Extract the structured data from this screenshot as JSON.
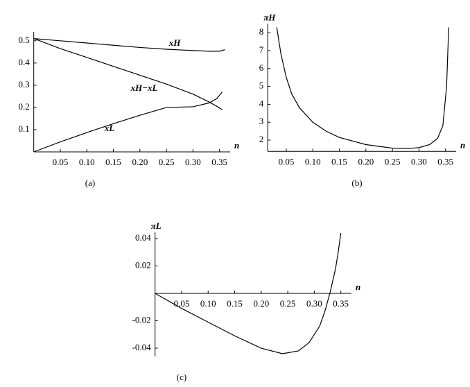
{
  "chart_data": [
    {
      "type": "line",
      "x_label": "n",
      "caption": "(a)",
      "xlim": [
        0,
        0.37
      ],
      "ylim": [
        0,
        0.54
      ],
      "xticks": [
        0.05,
        {
          "value": 0.1,
          "label": "0.10"
        },
        0.15,
        {
          "value": 0.2,
          "label": "0.20"
        },
        0.25,
        {
          "value": 0.3,
          "label": "0.30"
        },
        0.35
      ],
      "yticks": [
        0.1,
        0.2,
        0.3,
        0.4,
        0.5
      ],
      "series": [
        {
          "name": "xH",
          "color": "#000000",
          "x": [
            0,
            0.05,
            0.1,
            0.15,
            0.2,
            0.25,
            0.3,
            0.33,
            0.35,
            0.36
          ],
          "values": [
            0.51,
            0.5,
            0.49,
            0.48,
            0.47,
            0.462,
            0.456,
            0.453,
            0.453,
            0.46
          ]
        },
        {
          "name": "xH−xL",
          "color": "#000000",
          "x": [
            0,
            0.05,
            0.1,
            0.15,
            0.2,
            0.25,
            0.3,
            0.33,
            0.345,
            0.355
          ],
          "values": [
            0.51,
            0.465,
            0.425,
            0.385,
            0.345,
            0.305,
            0.26,
            0.225,
            0.205,
            0.19
          ]
        },
        {
          "name": "xL",
          "color": "#000000",
          "x": [
            0,
            0.05,
            0.1,
            0.15,
            0.2,
            0.25,
            0.3,
            0.33,
            0.345,
            0.355
          ],
          "values": [
            0,
            0.045,
            0.087,
            0.127,
            0.165,
            0.2,
            0.203,
            0.22,
            0.24,
            0.27
          ]
        }
      ]
    },
    {
      "type": "line",
      "x_label": "n",
      "y_label": "πH",
      "caption": "(b)",
      "xlim": [
        0.015,
        0.37
      ],
      "ylim": [
        1.37,
        8.5
      ],
      "xticks": [
        0.05,
        {
          "value": 0.1,
          "label": "0.10"
        },
        0.15,
        {
          "value": 0.2,
          "label": "0.20"
        },
        0.25,
        {
          "value": 0.3,
          "label": "0.30"
        },
        0.35
      ],
      "yticks": [
        2,
        3,
        4,
        5,
        6,
        7,
        8
      ],
      "series": [
        {
          "color": "#000000",
          "x": [
            0.032,
            0.04,
            0.05,
            0.06,
            0.075,
            0.1,
            0.125,
            0.15,
            0.2,
            0.25,
            0.28,
            0.3,
            0.32,
            0.335,
            0.345,
            0.352,
            0.356
          ],
          "values": [
            8.3,
            6.8,
            5.5,
            4.6,
            3.8,
            3.0,
            2.5,
            2.15,
            1.75,
            1.55,
            1.53,
            1.58,
            1.75,
            2.1,
            2.8,
            5.0,
            8.3
          ]
        }
      ]
    },
    {
      "type": "line",
      "x_label": "n",
      "y_label": "πL",
      "caption": "(c)",
      "xlim": [
        0,
        0.37
      ],
      "ylim": [
        -0.046,
        0.0445
      ],
      "xticks": [
        0.05,
        {
          "value": 0.1,
          "label": "0.10"
        },
        0.15,
        {
          "value": 0.2,
          "label": "0.20"
        },
        0.25,
        {
          "value": 0.3,
          "label": "0.30"
        },
        0.35
      ],
      "yticks": [
        -0.04,
        -0.02,
        0.02,
        0.04
      ],
      "series": [
        {
          "color": "#000000",
          "x": [
            0,
            0.05,
            0.1,
            0.15,
            0.2,
            0.24,
            0.27,
            0.29,
            0.31,
            0.32,
            0.33,
            0.34,
            0.345,
            0.35
          ],
          "values": [
            0,
            -0.011,
            -0.021,
            -0.031,
            -0.04,
            -0.044,
            -0.042,
            -0.036,
            -0.024,
            -0.013,
            0.001,
            0.018,
            0.03,
            0.044
          ]
        }
      ]
    }
  ]
}
